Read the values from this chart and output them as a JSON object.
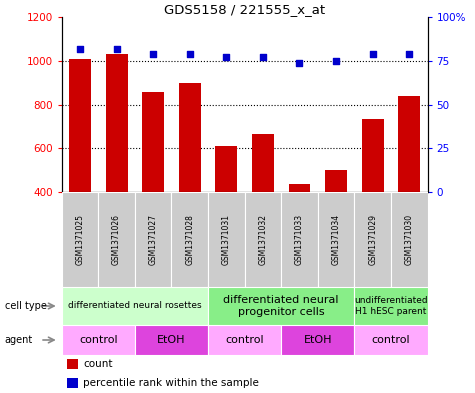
{
  "title": "GDS5158 / 221555_x_at",
  "samples": [
    "GSM1371025",
    "GSM1371026",
    "GSM1371027",
    "GSM1371028",
    "GSM1371031",
    "GSM1371032",
    "GSM1371033",
    "GSM1371034",
    "GSM1371029",
    "GSM1371030"
  ],
  "counts": [
    1010,
    1030,
    855,
    900,
    610,
    665,
    435,
    500,
    735,
    840
  ],
  "percentiles": [
    82,
    82,
    79,
    79,
    77,
    77,
    74,
    75,
    79,
    79
  ],
  "ylim_left": [
    400,
    1200
  ],
  "ylim_right": [
    0,
    100
  ],
  "bar_color": "#cc0000",
  "dot_color": "#0000cc",
  "bar_base": 400,
  "yticks_left": [
    400,
    600,
    800,
    1000,
    1200
  ],
  "yticks_right": [
    0,
    25,
    50,
    75,
    100
  ],
  "grid_vals": [
    600,
    800,
    1000
  ],
  "cell_type_groups": [
    {
      "label": "differentiated neural rosettes",
      "start": 0,
      "end": 4,
      "color": "#ccffcc",
      "fontsize": 6.5
    },
    {
      "label": "differentiated neural\nprogenitor cells",
      "start": 4,
      "end": 8,
      "color": "#88ee88",
      "fontsize": 8
    },
    {
      "label": "undifferentiated\nH1 hESC parent",
      "start": 8,
      "end": 10,
      "color": "#88ee88",
      "fontsize": 6.5
    }
  ],
  "agent_groups": [
    {
      "label": "control",
      "start": 0,
      "end": 2,
      "color": "#ffaaff"
    },
    {
      "label": "EtOH",
      "start": 2,
      "end": 4,
      "color": "#dd44dd"
    },
    {
      "label": "control",
      "start": 4,
      "end": 6,
      "color": "#ffaaff"
    },
    {
      "label": "EtOH",
      "start": 6,
      "end": 8,
      "color": "#dd44dd"
    },
    {
      "label": "control",
      "start": 8,
      "end": 10,
      "color": "#ffaaff"
    }
  ]
}
